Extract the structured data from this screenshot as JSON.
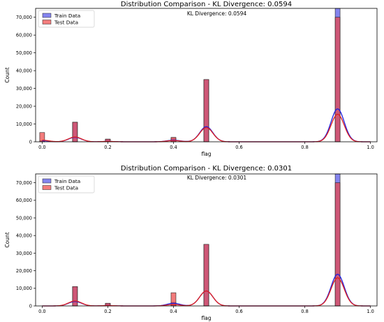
{
  "chart_data": [
    {
      "type": "bar",
      "title": "Distribution Comparison - KL Divergence: 0.0594",
      "annotation": "KL Divergence: 0.0594",
      "xlabel": "flag",
      "ylabel": "Count",
      "xlim": [
        -0.02,
        1.02
      ],
      "ylim": [
        0,
        75000
      ],
      "xticks": [
        "0.0",
        "0.2",
        "0.4",
        "0.6",
        "0.8",
        "1.0"
      ],
      "xtick_values": [
        0.0,
        0.2,
        0.4,
        0.6,
        0.8,
        1.0
      ],
      "yticks": [
        "0",
        "10,000",
        "20,000",
        "30,000",
        "40,000",
        "50,000",
        "60,000",
        "70,000"
      ],
      "ytick_values": [
        0,
        10000,
        20000,
        30000,
        40000,
        50000,
        60000,
        70000
      ],
      "legend_position": "top-left",
      "x": [
        0.0,
        0.1,
        0.2,
        0.4,
        0.5,
        0.9
      ],
      "series": [
        {
          "name": "Train Data",
          "values": [
            600,
            11000,
            1500,
            2000,
            35000,
            75000
          ],
          "color": "#5050e8"
        },
        {
          "name": "Test Data",
          "values": [
            5200,
            11000,
            1500,
            2500,
            35000,
            70000
          ],
          "color": "#ee4444"
        }
      ],
      "kde": {
        "train": {
          "peaks": [
            [
              0.0,
              600
            ],
            [
              0.1,
              2500
            ],
            [
              0.2,
              200
            ],
            [
              0.4,
              900
            ],
            [
              0.5,
              8500
            ],
            [
              0.9,
              18500
            ]
          ]
        },
        "test": {
          "peaks": [
            [
              0.0,
              900
            ],
            [
              0.1,
              2700
            ],
            [
              0.2,
              200
            ],
            [
              0.4,
              700
            ],
            [
              0.5,
              8000
            ],
            [
              0.9,
              15500
            ]
          ]
        }
      }
    },
    {
      "type": "bar",
      "title": "Distribution Comparison - KL Divergence: 0.0301",
      "annotation": "KL Divergence: 0.0301",
      "xlabel": "flag",
      "ylabel": "Count",
      "xlim": [
        -0.02,
        1.02
      ],
      "ylim": [
        0,
        75000
      ],
      "xticks": [
        "0.0",
        "0.2",
        "0.4",
        "0.6",
        "0.8",
        "1.0"
      ],
      "xtick_values": [
        0.0,
        0.2,
        0.4,
        0.6,
        0.8,
        1.0
      ],
      "yticks": [
        "0",
        "10,000",
        "20,000",
        "30,000",
        "40,000",
        "50,000",
        "60,000",
        "70,000"
      ],
      "ytick_values": [
        0,
        10000,
        20000,
        30000,
        40000,
        50000,
        60000,
        70000
      ],
      "legend_position": "top-left",
      "x": [
        0.1,
        0.2,
        0.4,
        0.5,
        0.9
      ],
      "series": [
        {
          "name": "Train Data",
          "values": [
            11000,
            1500,
            2000,
            35000,
            75000
          ],
          "color": "#5050e8"
        },
        {
          "name": "Test Data",
          "values": [
            11000,
            1500,
            7500,
            35000,
            70000
          ],
          "color": "#ee4444"
        }
      ],
      "kde": {
        "train": {
          "peaks": [
            [
              0.1,
              2500
            ],
            [
              0.2,
              200
            ],
            [
              0.4,
              1500
            ],
            [
              0.5,
              8500
            ],
            [
              0.9,
              18000
            ]
          ]
        },
        "test": {
          "peaks": [
            [
              0.1,
              2800
            ],
            [
              0.2,
              200
            ],
            [
              0.4,
              800
            ],
            [
              0.5,
              8500
            ],
            [
              0.9,
              16000
            ]
          ]
        }
      }
    }
  ]
}
